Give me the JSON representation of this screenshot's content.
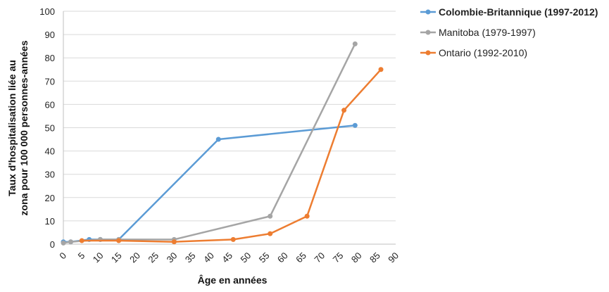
{
  "chart_data": {
    "type": "line",
    "xlabel": "Âge en années",
    "ylabel_lines": [
      "Taux d'hospitalisation liée au",
      "zona pour 100 000 personnes-années"
    ],
    "xlim": [
      0,
      90
    ],
    "ylim": [
      0,
      100
    ],
    "x_ticks": [
      "0",
      "5",
      "10",
      "15",
      "20",
      "25",
      "30",
      "35",
      "40",
      "45",
      "50",
      "55",
      "60",
      "65",
      "70",
      "75",
      "80",
      "85",
      "90"
    ],
    "y_ticks": [
      "0",
      "10",
      "20",
      "30",
      "40",
      "50",
      "60",
      "70",
      "80",
      "90",
      "100"
    ],
    "grid": "horizontal",
    "legend_position": "right",
    "series": [
      {
        "name": "Colombie-Britannique (1997-2012)",
        "color": "#5B9BD5",
        "legend_bold": true,
        "points": [
          [
            0,
            1
          ],
          [
            2,
            1
          ],
          [
            7,
            2
          ],
          [
            10,
            2
          ],
          [
            15,
            2
          ],
          [
            42,
            45
          ],
          [
            79,
            51
          ]
        ]
      },
      {
        "name": "Manitoba (1979-1997)",
        "color": "#A5A5A5",
        "legend_bold": false,
        "points": [
          [
            0,
            0.5
          ],
          [
            2,
            1
          ],
          [
            10,
            2
          ],
          [
            15,
            2
          ],
          [
            30,
            2
          ],
          [
            56,
            12
          ],
          [
            79,
            86
          ]
        ]
      },
      {
        "name": "Ontario (1992-2010)",
        "color": "#ED7D31",
        "legend_bold": false,
        "points": [
          [
            5,
            1.5
          ],
          [
            15,
            1.5
          ],
          [
            30,
            1
          ],
          [
            46,
            2
          ],
          [
            56,
            4.5
          ],
          [
            66,
            12
          ],
          [
            76,
            57.5
          ],
          [
            86,
            75
          ]
        ]
      }
    ]
  }
}
